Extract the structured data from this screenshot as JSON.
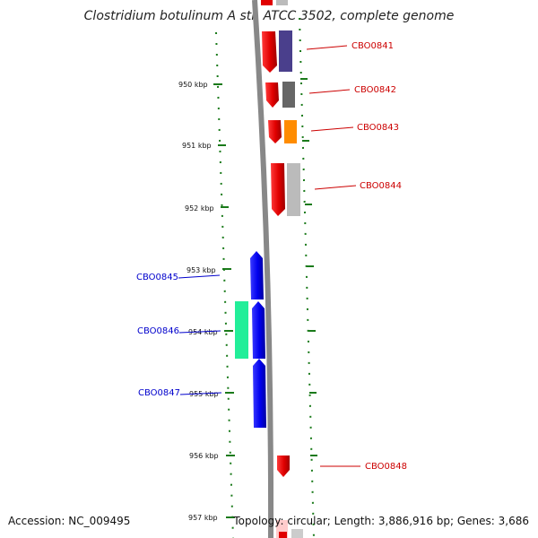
{
  "title": "Clostridium botulinum A str. ATCC 3502, complete genome",
  "footer": {
    "accession": "Accession: NC_009495",
    "topology": "Topology: circular; Length: 3,886,916 bp; Genes: 3,686"
  },
  "colors": {
    "strand_forward": "#e00000",
    "strand_reverse": "#0000ee",
    "backbone": "#888888",
    "tick": "#1a7a1a"
  },
  "ticks": [
    "950 kbp",
    "951 kbp",
    "952 kbp",
    "953 kbp",
    "954 kbp",
    "955 kbp",
    "956 kbp",
    "957 kbp"
  ],
  "genes": [
    {
      "label": "CBO0841",
      "strand": "forward",
      "partner_color": "#4a3f8c"
    },
    {
      "label": "CBO0842",
      "strand": "forward",
      "partner_color": "#666666"
    },
    {
      "label": "CBO0843",
      "strand": "forward",
      "partner_color": "#ff8c00"
    },
    {
      "label": "CBO0844",
      "strand": "forward",
      "partner_color": "#bbbbbb"
    },
    {
      "label": "CBO0845",
      "strand": "reverse",
      "partner_color": null
    },
    {
      "label": "CBO0846",
      "strand": "reverse",
      "partner_color": "#22ee99"
    },
    {
      "label": "CBO0847",
      "strand": "reverse",
      "partner_color": null
    },
    {
      "label": "CBO0848",
      "strand": "forward",
      "partner_color": null
    }
  ]
}
